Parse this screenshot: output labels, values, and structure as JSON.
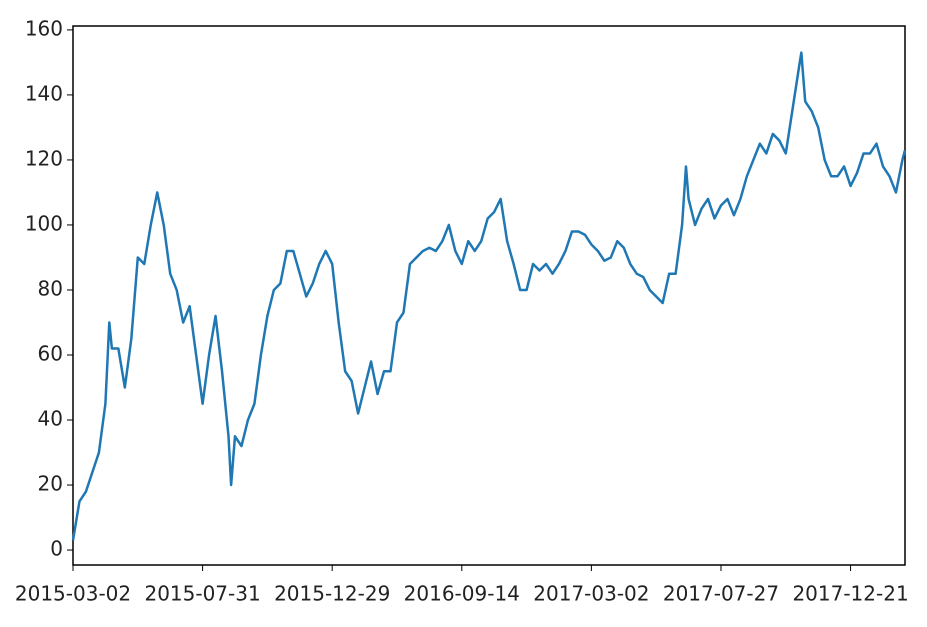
{
  "chart_data": {
    "type": "line",
    "x": [
      0,
      5,
      10,
      15,
      20,
      25,
      28,
      30,
      35,
      40,
      45,
      50,
      55,
      60,
      65,
      70,
      75,
      80,
      85,
      90,
      95,
      100,
      105,
      110,
      115,
      120,
      122,
      125,
      130,
      135,
      140,
      145,
      150,
      155,
      160,
      165,
      170,
      175,
      180,
      185,
      190,
      195,
      200,
      205,
      210,
      215,
      220,
      225,
      230,
      235,
      240,
      245,
      250,
      255,
      260,
      265,
      270,
      275,
      280,
      285,
      290,
      295,
      300,
      305,
      310,
      315,
      320,
      325,
      330,
      335,
      340,
      345,
      350,
      355,
      360,
      365,
      370,
      375,
      380,
      385,
      390,
      395,
      400,
      405,
      410,
      415,
      420,
      425,
      430,
      435,
      440,
      445,
      450,
      455,
      460,
      465,
      470,
      473,
      475,
      480,
      485,
      490,
      495,
      500,
      505,
      510,
      515,
      520,
      525,
      530,
      535,
      540,
      545,
      550,
      555,
      560,
      562,
      565,
      570,
      575,
      580,
      585,
      590,
      595,
      600,
      605,
      610,
      615,
      620,
      625,
      630,
      635,
      640,
      642
    ],
    "series": [
      {
        "color": "#1f77b4",
        "values": [
          3,
          15,
          18,
          24,
          30,
          45,
          70,
          62,
          62,
          50,
          65,
          90,
          88,
          100,
          110,
          100,
          85,
          80,
          70,
          75,
          60,
          45,
          60,
          72,
          55,
          35,
          20,
          35,
          32,
          40,
          45,
          60,
          72,
          80,
          82,
          92,
          92,
          85,
          78,
          82,
          88,
          92,
          88,
          70,
          55,
          52,
          42,
          50,
          58,
          48,
          55,
          55,
          70,
          73,
          88,
          90,
          92,
          93,
          92,
          95,
          100,
          92,
          88,
          95,
          92,
          95,
          102,
          104,
          108,
          95,
          88,
          80,
          80,
          88,
          86,
          88,
          85,
          88,
          92,
          98,
          98,
          97,
          94,
          92,
          89,
          90,
          95,
          93,
          88,
          85,
          84,
          80,
          78,
          76,
          85,
          85,
          100,
          118,
          108,
          100,
          105,
          108,
          102,
          106,
          108,
          103,
          108,
          115,
          120,
          125,
          122,
          128,
          126,
          122,
          135,
          148,
          153,
          138,
          135,
          130,
          120,
          115,
          115,
          118,
          112,
          116,
          122,
          122,
          125,
          118,
          115,
          110,
          120,
          123
        ]
      }
    ],
    "xlim": [
      0,
      642
    ],
    "xticks": [
      {
        "value": 0,
        "label": "2015-03-02"
      },
      {
        "value": 100,
        "label": "2015-07-31"
      },
      {
        "value": 200,
        "label": "2015-12-29"
      },
      {
        "value": 300,
        "label": "2016-09-14"
      },
      {
        "value": 400,
        "label": "2017-03-02"
      },
      {
        "value": 500,
        "label": "2017-07-27"
      },
      {
        "value": 600,
        "label": "2017-12-21"
      }
    ],
    "ylim": [
      -4.6,
      161.2
    ],
    "yticks": [
      0,
      20,
      40,
      60,
      80,
      100,
      120,
      140,
      160
    ]
  }
}
